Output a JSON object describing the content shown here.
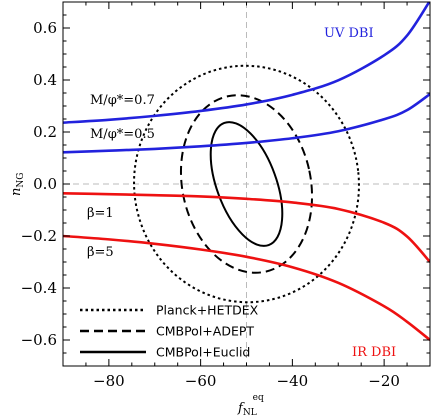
{
  "chart_data": {
    "type": "line",
    "xlabel": "f",
    "xlabel_sub": "NL",
    "xlabel_sup": "eq",
    "ylabel": "n",
    "ylabel_sub": "NG",
    "xlim": [
      -90,
      -10
    ],
    "ylim": [
      -0.7,
      0.7
    ],
    "x_ticks": [
      -80,
      -60,
      -40,
      -20
    ],
    "x_tick_labels": [
      "−80",
      "−60",
      "−40",
      "−20"
    ],
    "y_ticks": [
      0.6,
      0.4,
      0.2,
      0.0,
      -0.2,
      -0.4,
      -0.6
    ],
    "y_tick_labels": [
      "0.6",
      "0.4",
      "0.2",
      "0.0",
      "−0.2",
      "−0.4",
      "−0.6"
    ],
    "reference_lines": {
      "x": -50,
      "y": 0
    },
    "colors": {
      "uv": "#2222dd",
      "ir": "#ee1111",
      "ref": "#bbbbbb"
    },
    "series": [
      {
        "group": "UV DBI",
        "label": "M/φ*=0.7",
        "color": "#2222dd",
        "x": [
          -90,
          -80,
          -70,
          -60,
          -50,
          -40,
          -30,
          -20,
          -15,
          -10
        ],
        "y": [
          0.236,
          0.247,
          0.262,
          0.281,
          0.306,
          0.343,
          0.399,
          0.495,
          0.571,
          0.705
        ]
      },
      {
        "group": "UV DBI",
        "label": "M/φ*=0.5",
        "color": "#2222dd",
        "x": [
          -90,
          -80,
          -70,
          -60,
          -50,
          -40,
          -30,
          -20,
          -15,
          -10
        ],
        "y": [
          0.122,
          0.128,
          0.135,
          0.145,
          0.158,
          0.176,
          0.203,
          0.249,
          0.284,
          0.346
        ]
      },
      {
        "group": "IR DBI",
        "label": "β=1",
        "color": "#ee1111",
        "x": [
          -90,
          -80,
          -70,
          -60,
          -50,
          -40,
          -30,
          -20,
          -15,
          -10
        ],
        "y": [
          -0.036,
          -0.039,
          -0.043,
          -0.048,
          -0.057,
          -0.071,
          -0.096,
          -0.149,
          -0.202,
          -0.3
        ]
      },
      {
        "group": "IR DBI",
        "label": "β=5",
        "color": "#ee1111",
        "x": [
          -90,
          -80,
          -70,
          -60,
          -50,
          -40,
          -30,
          -20,
          -15,
          -10
        ],
        "y": [
          -0.2,
          -0.213,
          -0.23,
          -0.252,
          -0.28,
          -0.32,
          -0.38,
          -0.47,
          -0.53,
          -0.6
        ]
      }
    ],
    "ellipses": [
      {
        "label": "Planck+HETDEX",
        "style": "dotted",
        "cx": -50,
        "cy": 0.0,
        "rx": 24.5,
        "ry": 0.455,
        "rot": -6
      },
      {
        "label": "CMBPol+ADEPT",
        "style": "dashed",
        "cx": -50,
        "cy": 0.0,
        "rx": 14.0,
        "ry": 0.345,
        "rot": -12
      },
      {
        "label": "CMBPol+Euclid",
        "style": "solid",
        "cx": -50,
        "cy": 0.0,
        "rx": 6.5,
        "ry": 0.25,
        "rot": -20
      }
    ],
    "annotations": {
      "uv": "UV DBI",
      "ir": "IR DBI",
      "m07": "M/φ*=0.7",
      "m05": "M/φ*=0.5",
      "b1": "β=1",
      "b5": "β=5"
    },
    "legend": {
      "placement": "bottom-left",
      "entries": [
        {
          "label": "Planck+HETDEX",
          "style": "dotted"
        },
        {
          "label": "CMBPol+ADEPT",
          "style": "dashed"
        },
        {
          "label": "CMBPol+Euclid",
          "style": "solid"
        }
      ]
    },
    "grid": false
  }
}
